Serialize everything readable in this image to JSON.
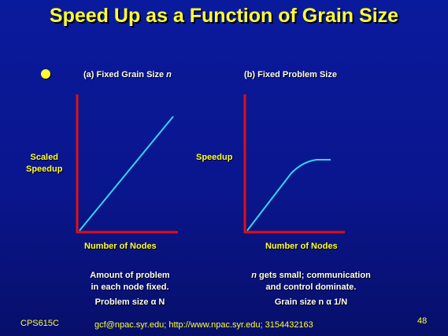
{
  "title": "Speed Up as a Function of Grain Size",
  "panel_a": {
    "heading": "(a) Fixed Grain Size",
    "heading_var": "n",
    "y_label_line1": "Scaled",
    "y_label_line2": "Speedup",
    "x_label": "Number of Nodes",
    "note_line1": "Amount of problem",
    "note_line2": "in each node fixed.",
    "note_line3": "Problem size α N"
  },
  "panel_b": {
    "heading": "(b) Fixed Problem Size",
    "y_label": "Speedup",
    "x_label": "Number of Nodes",
    "note_var": "n",
    "note_line1": " gets small; communication",
    "note_line2": "and control dominate.",
    "note_line3": "Grain size n α 1/N"
  },
  "footer": {
    "course": "CPS615C",
    "contact": "gcf@npac.syr.edu; http://www.npac.syr.edu; 3154432163",
    "page": "48"
  },
  "colors": {
    "title": "#ffff33",
    "axis": "#e01010",
    "curve": "#33d6f0",
    "background": "#0a1a9c"
  }
}
